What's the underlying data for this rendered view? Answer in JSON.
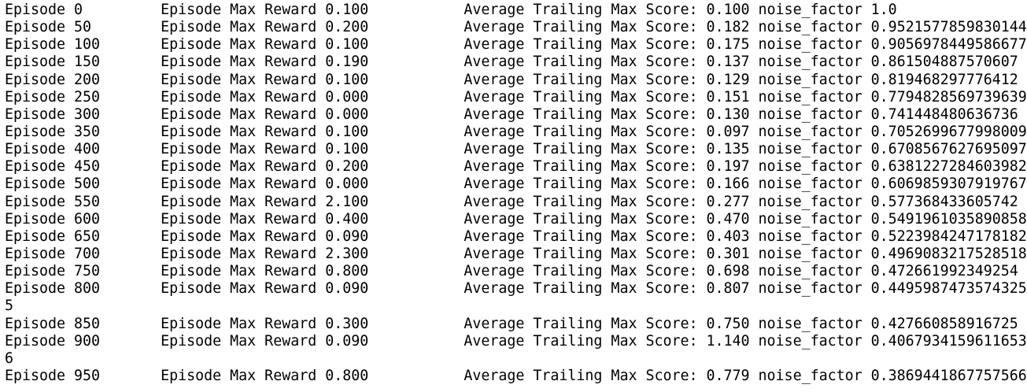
{
  "terminal": {
    "lines": [
      "Episode 0         Episode Max Reward 0.100           Average Trailing Max Score: 0.100 noise_factor 1.0",
      "Episode 50        Episode Max Reward 0.200           Average Trailing Max Score: 0.182 noise_factor 0.9521577859830144",
      "Episode 100       Episode Max Reward 0.100           Average Trailing Max Score: 0.175 noise_factor 0.9056978449586677",
      "Episode 150       Episode Max Reward 0.190           Average Trailing Max Score: 0.137 noise_factor 0.861504887570607",
      "Episode 200       Episode Max Reward 0.100           Average Trailing Max Score: 0.129 noise_factor 0.819468297776412",
      "Episode 250       Episode Max Reward 0.000           Average Trailing Max Score: 0.151 noise_factor 0.7794828569739639",
      "Episode 300       Episode Max Reward 0.000           Average Trailing Max Score: 0.130 noise_factor 0.741448480636736",
      "Episode 350       Episode Max Reward 0.100           Average Trailing Max Score: 0.097 noise_factor 0.7052699677998009",
      "Episode 400       Episode Max Reward 0.100           Average Trailing Max Score: 0.135 noise_factor 0.6708567627695097",
      "Episode 450       Episode Max Reward 0.200           Average Trailing Max Score: 0.197 noise_factor 0.6381227284603982",
      "Episode 500       Episode Max Reward 0.000           Average Trailing Max Score: 0.166 noise_factor 0.6069859307919767",
      "Episode 550       Episode Max Reward 2.100           Average Trailing Max Score: 0.277 noise_factor 0.577368433605742",
      "Episode 600       Episode Max Reward 0.400           Average Trailing Max Score: 0.470 noise_factor 0.5491961035890858",
      "Episode 650       Episode Max Reward 0.090           Average Trailing Max Score: 0.403 noise_factor 0.5223984247178182",
      "Episode 700       Episode Max Reward 2.300           Average Trailing Max Score: 0.301 noise_factor 0.4969083217528518",
      "Episode 750       Episode Max Reward 0.800           Average Trailing Max Score: 0.698 noise_factor 0.472661992349254",
      "Episode 800       Episode Max Reward 0.090           Average Trailing Max Score: 0.807 noise_factor 0.4495987473574325",
      "5",
      "Episode 850       Episode Max Reward 0.300           Average Trailing Max Score: 0.750 noise_factor 0.427660858916725",
      "Episode 900       Episode Max Reward 0.090           Average Trailing Max Score: 1.140 noise_factor 0.4067934159611653",
      "6",
      "Episode 950       Episode Max Reward 0.800           Average Trailing Max Score: 0.779 noise_factor 0.3869441867757566"
    ]
  }
}
